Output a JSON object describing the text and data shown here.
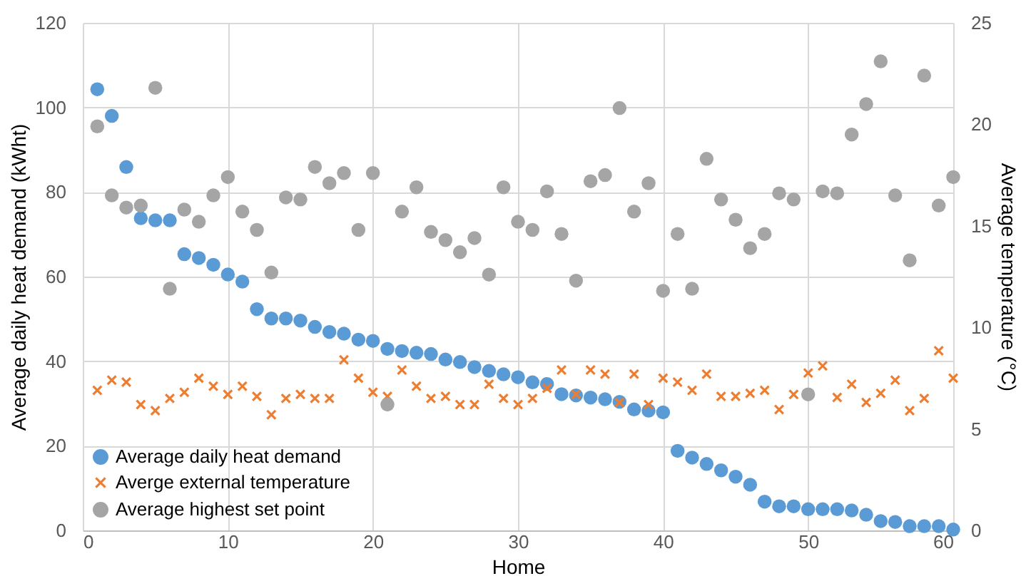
{
  "chart_data": {
    "type": "scatter",
    "xlabel": "Home",
    "ylabel": "Average daily heat demand (kWht)",
    "y2label": "Average temperature (°C)",
    "x": [
      1,
      2,
      3,
      4,
      5,
      6,
      7,
      8,
      9,
      10,
      11,
      12,
      13,
      14,
      15,
      16,
      17,
      18,
      19,
      20,
      21,
      22,
      23,
      24,
      25,
      26,
      27,
      28,
      29,
      30,
      31,
      32,
      33,
      34,
      35,
      36,
      37,
      38,
      39,
      40,
      41,
      42,
      43,
      44,
      45,
      46,
      47,
      48,
      49,
      50,
      51,
      52,
      53,
      54,
      55,
      56,
      57,
      58,
      59,
      60
    ],
    "xlim": [
      0,
      60
    ],
    "xticks": [
      0,
      10,
      20,
      30,
      40,
      50,
      60
    ],
    "ylim": [
      0,
      120
    ],
    "yticks": [
      0,
      20,
      40,
      60,
      80,
      100,
      120
    ],
    "y2lim": [
      0,
      25
    ],
    "y2ticks": [
      0,
      5,
      10,
      15,
      20,
      25
    ],
    "grid": true,
    "legend": "bottom left",
    "series": [
      {
        "name": "Average daily heat demand",
        "color": "#5b9bd5",
        "marker": "circle",
        "values": [
          104.3,
          98,
          85.9,
          73.8,
          73.3,
          73.3,
          65.3,
          64.4,
          62.8,
          60.5,
          58.8,
          52.3,
          50.1,
          50.1,
          49.6,
          48.1,
          46.9,
          46.5,
          45.1,
          44.8,
          42.9,
          42.4,
          42,
          41.7,
          40.4,
          39.8,
          38.6,
          37.7,
          36.9,
          36.2,
          35,
          34.6,
          32.2,
          31.9,
          31.4,
          31,
          30.4,
          28.6,
          28.3,
          27.9,
          18.8,
          17.2,
          15.7,
          14.2,
          12.7,
          10.8,
          6.8,
          5.7,
          5.7,
          5,
          5,
          5,
          4.7,
          3.7,
          2.2,
          2,
          1,
          1,
          1,
          0.2
        ]
      },
      {
        "name": "Averge external temperature",
        "color": "#ed7d31",
        "marker": "cross",
        "axis": "y2",
        "values": [
          6.9,
          7.4,
          7.3,
          6.2,
          5.9,
          6.5,
          6.8,
          7.5,
          7.1,
          6.7,
          7.1,
          6.6,
          5.7,
          6.5,
          6.7,
          6.5,
          6.5,
          8.4,
          7.5,
          6.8,
          6.6,
          7.9,
          7.1,
          6.5,
          6.6,
          6.2,
          6.2,
          7.2,
          6.5,
          6.2,
          6.5,
          7,
          7.9,
          6.7,
          7.9,
          7.7,
          6.3,
          7.7,
          6.2,
          7.5,
          7.3,
          6.9,
          7.7,
          6.6,
          6.6,
          6.75,
          6.9,
          5.95,
          6.7,
          7.75,
          8.1,
          6.55,
          7.2,
          6.3,
          6.75,
          7.4,
          5.9,
          6.5,
          8.85,
          7.5
        ]
      },
      {
        "name": "Average highest set point",
        "color": "#a5a5a5",
        "marker": "circle",
        "axis": "y2",
        "values": [
          19.9,
          16.5,
          15.9,
          16,
          21.8,
          11.9,
          15.8,
          15.2,
          16.5,
          17.4,
          15.7,
          14.8,
          12.7,
          16.4,
          16.3,
          17.9,
          17.1,
          17.6,
          14.8,
          17.6,
          6.2,
          15.7,
          16.9,
          14.7,
          14.3,
          13.7,
          14.4,
          12.6,
          16.9,
          15.2,
          14.8,
          16.7,
          14.6,
          12.3,
          17.2,
          17.5,
          20.8,
          15.7,
          17.1,
          11.8,
          14.6,
          11.9,
          18.3,
          16.3,
          15.3,
          13.9,
          14.6,
          16.6,
          16.3,
          6.7,
          16.7,
          16.6,
          19.5,
          21,
          23.1,
          16.5,
          13.3,
          22.4,
          16,
          17.4
        ]
      }
    ]
  }
}
